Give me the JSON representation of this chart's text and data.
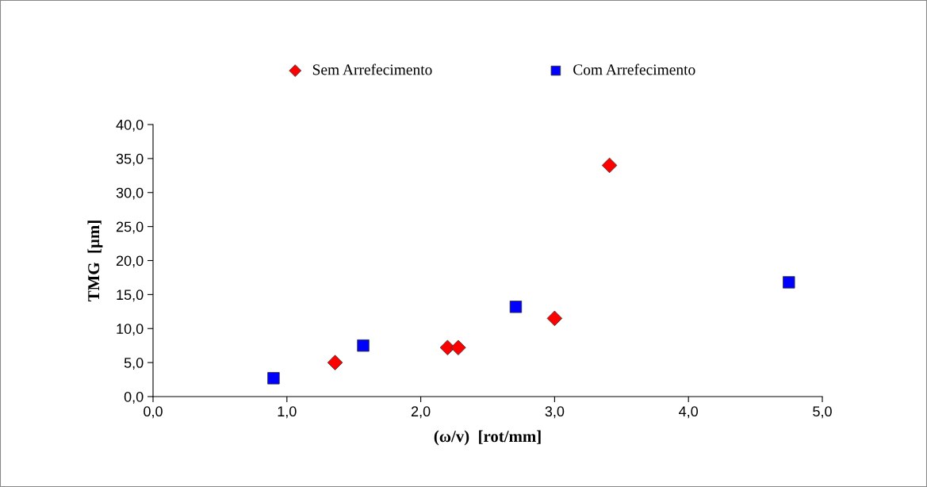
{
  "chart_data": {
    "type": "scatter",
    "xlabel": "(ω/v)  [rot/mm]",
    "ylabel": "TMG  [µm]",
    "series": [
      {
        "name": "Sem Arrefecimento",
        "color": "#ff0000",
        "marker": "diamond",
        "x": [
          1.36,
          2.2,
          2.28,
          3.0,
          3.41
        ],
        "values": [
          5.0,
          7.2,
          7.2,
          11.5,
          34.0
        ]
      },
      {
        "name": "Com Arrefecimento",
        "color": "#0000ff",
        "marker": "square",
        "x": [
          0.9,
          1.57,
          2.71,
          4.75
        ],
        "values": [
          2.7,
          7.5,
          13.2,
          16.8
        ]
      }
    ],
    "xlim": [
      0,
      5
    ],
    "ylim": [
      0,
      40
    ],
    "xticks": [
      {
        "value": 0,
        "label": "0,0"
      },
      {
        "value": 1,
        "label": "1,0"
      },
      {
        "value": 2,
        "label": "2,0"
      },
      {
        "value": 3,
        "label": "3,0"
      },
      {
        "value": 4,
        "label": "4,0"
      },
      {
        "value": 5,
        "label": "5,0"
      }
    ],
    "yticks": [
      {
        "value": 0,
        "label": "0,0"
      },
      {
        "value": 5,
        "label": "5,0"
      },
      {
        "value": 10,
        "label": "10,0"
      },
      {
        "value": 15,
        "label": "15,0"
      },
      {
        "value": 20,
        "label": "20,0"
      },
      {
        "value": 25,
        "label": "25,0"
      },
      {
        "value": 30,
        "label": "30,0"
      },
      {
        "value": 35,
        "label": "35,0"
      },
      {
        "value": 40,
        "label": "40,0"
      }
    ],
    "grid": false,
    "legend": "top"
  }
}
